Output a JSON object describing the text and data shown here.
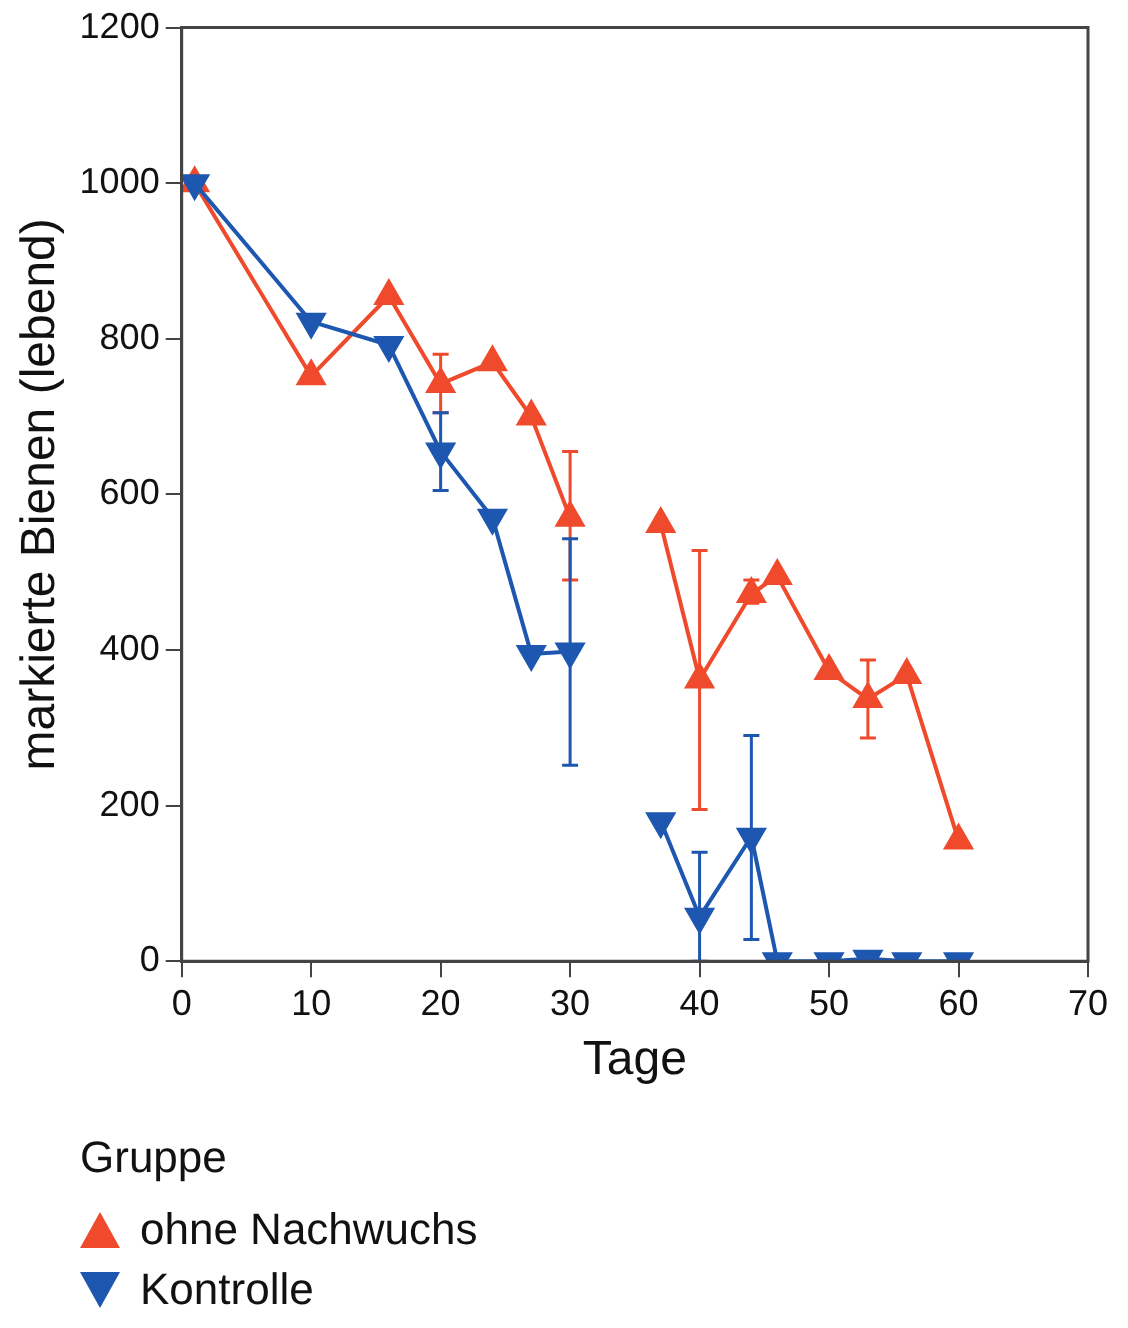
{
  "chart_data": {
    "type": "line",
    "xlabel": "Tage",
    "ylabel": "markierte Bienen (lebend)",
    "legend_title": "Gruppe",
    "legend": "bottom left",
    "x": [
      1,
      10,
      16,
      20,
      24,
      27,
      30,
      34,
      37,
      40,
      44,
      46,
      50,
      53,
      56,
      60
    ],
    "series": [
      {
        "name": "ohne Nachwuchs",
        "color": "#f04a2c",
        "marker": "triangle",
        "values": [
          1000,
          752,
          855,
          742,
          770,
          700,
          570,
          null,
          562,
          362,
          472,
          495,
          373,
          337,
          368,
          155
        ],
        "errors": [
          null,
          null,
          null,
          [
            705,
            780
          ],
          null,
          null,
          [
            490,
            655
          ],
          null,
          null,
          [
            195,
            528
          ],
          [
            460,
            490
          ],
          null,
          null,
          [
            287,
            387
          ],
          null,
          null
        ]
      },
      {
        "name": "Kontrolle",
        "color": "#1d57b0",
        "marker": "triangle-down",
        "values": [
          1000,
          822,
          792,
          655,
          570,
          395,
          398,
          null,
          180,
          57,
          160,
          0,
          0,
          3,
          0,
          0
        ],
        "errors": [
          null,
          null,
          null,
          [
            605,
            705
          ],
          null,
          null,
          [
            252,
            543
          ],
          null,
          null,
          [
            0,
            140
          ],
          [
            28,
            290
          ],
          null,
          null,
          null,
          null,
          null
        ]
      }
    ],
    "xlim": [
      0,
      70
    ],
    "xticks": [
      0,
      10,
      20,
      30,
      40,
      50,
      60,
      70
    ],
    "ylim": [
      0,
      1200
    ],
    "yticks": [
      0,
      200,
      400,
      600,
      800,
      1000,
      1200
    ],
    "grid": false
  }
}
